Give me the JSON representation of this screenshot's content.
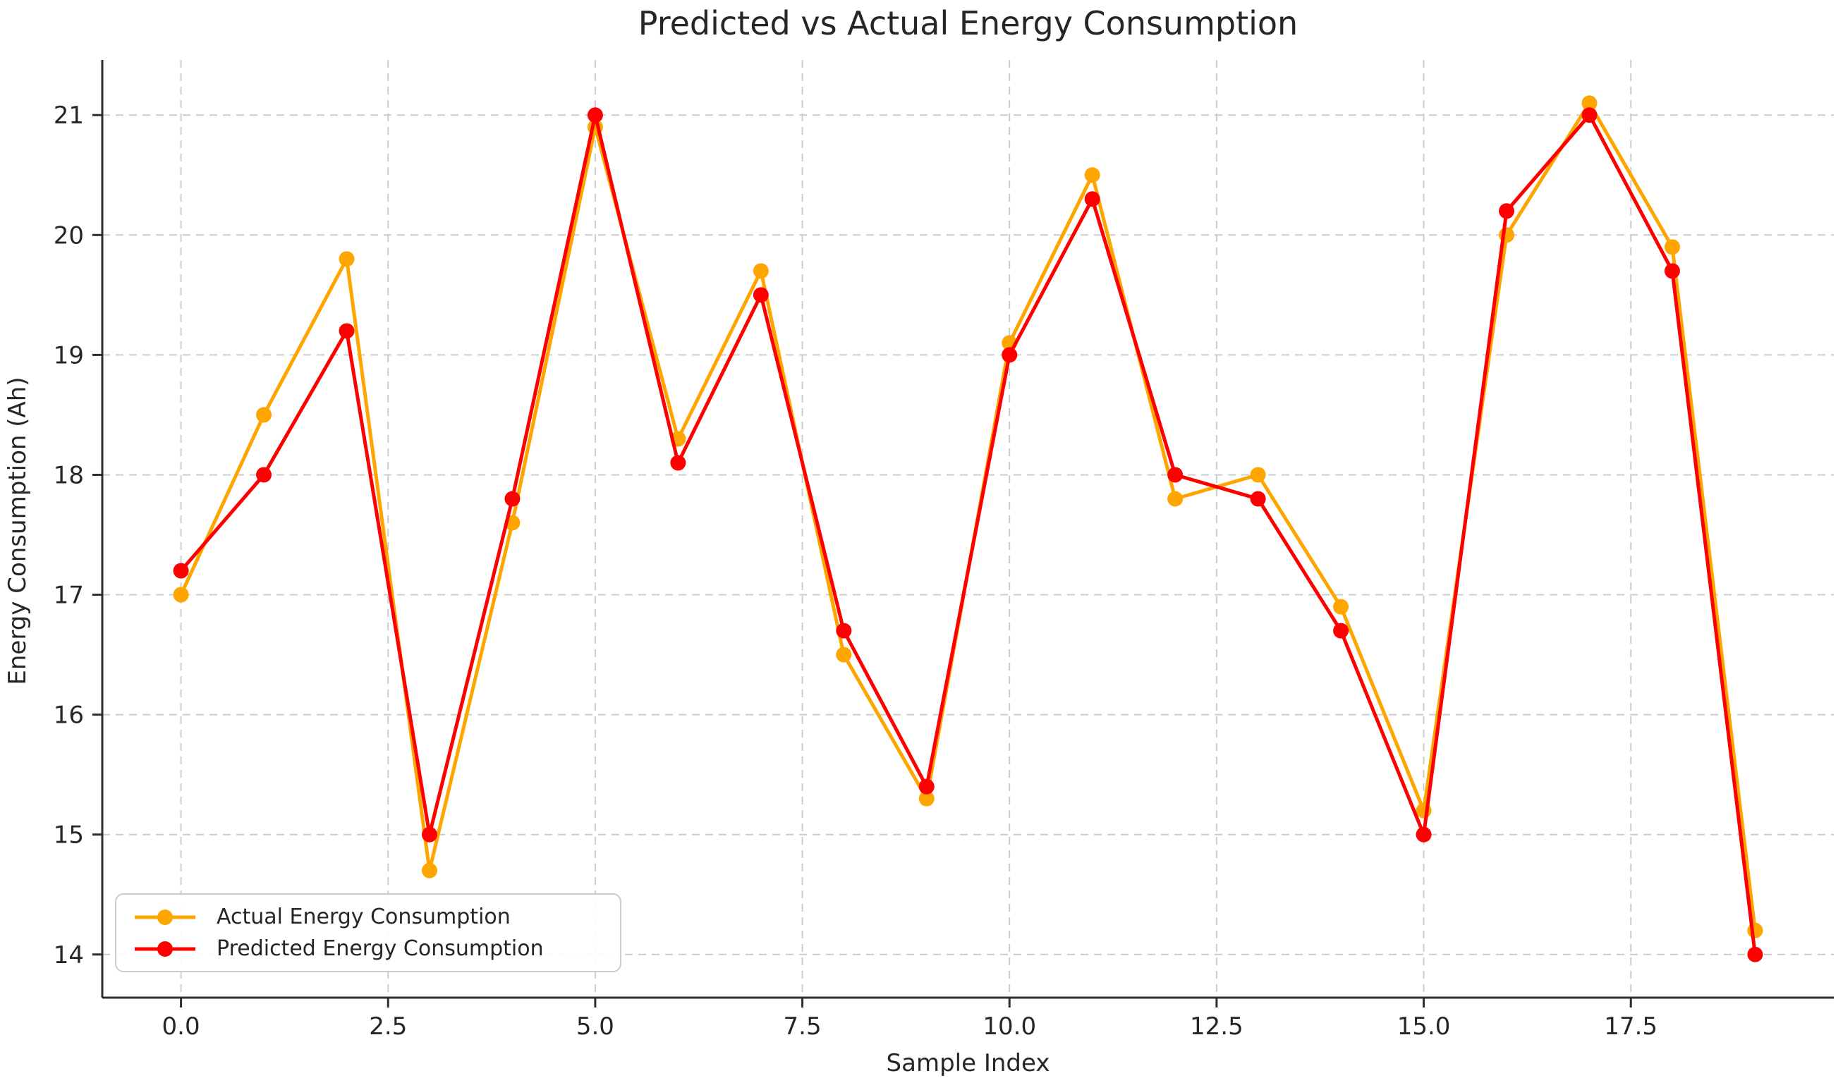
{
  "figure": {
    "title": "Predicted vs Actual Energy Consumption",
    "background": "#ffffff"
  },
  "chart_data": {
    "type": "line",
    "title": "Predicted vs Actual Energy Consumption",
    "xlabel": "Sample Index",
    "ylabel": "Energy Consumption (Ah)",
    "x": [
      0,
      1,
      2,
      3,
      4,
      5,
      6,
      7,
      8,
      9,
      10,
      11,
      12,
      13,
      14,
      15,
      16,
      17,
      18,
      19
    ],
    "series": [
      {
        "name": "Actual Energy Consumption",
        "color": "#FFA500",
        "values": [
          17.0,
          18.5,
          19.8,
          14.7,
          17.6,
          20.9,
          18.3,
          19.7,
          16.5,
          15.3,
          19.1,
          20.5,
          17.8,
          18.0,
          16.9,
          15.2,
          20.0,
          21.1,
          19.9,
          14.2
        ]
      },
      {
        "name": "Predicted Energy Consumption",
        "color": "#FF0000",
        "values": [
          17.2,
          18.0,
          19.2,
          15.0,
          17.8,
          21.0,
          18.1,
          19.5,
          16.7,
          15.4,
          19.0,
          20.3,
          18.0,
          17.8,
          16.7,
          15.0,
          20.2,
          21.0,
          19.7,
          14.0
        ]
      }
    ],
    "x_ticks": {
      "values": [
        0,
        2.5,
        5,
        7.5,
        10,
        12.5,
        15,
        17.5
      ],
      "labels": [
        "0.0",
        "2.5",
        "5.0",
        "7.5",
        "10.0",
        "12.5",
        "15.0",
        "17.5"
      ]
    },
    "y_ticks": {
      "values": [
        14,
        15,
        16,
        17,
        18,
        19,
        20,
        21
      ],
      "labels": [
        "14",
        "15",
        "16",
        "17",
        "18",
        "19",
        "20",
        "21"
      ]
    },
    "xlim": [
      -0.95,
      19.95
    ],
    "ylim": [
      13.64,
      21.46
    ],
    "grid": true,
    "grid_color": "#cccccc",
    "spine_color": "#2e2e2e",
    "text_color": "#262626",
    "legend_position": "lower left",
    "line_width": 5,
    "marker_radius": 11
  }
}
